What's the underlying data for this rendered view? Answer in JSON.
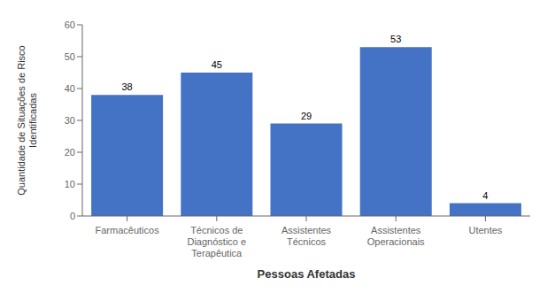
{
  "chart_data": {
    "type": "bar",
    "categories": [
      "Farmacêuticos",
      "Técnicos de\nDiagnóstico e\nTerapêutica",
      "Assistentes\nTécnicos",
      "Assistentes\nOperacionais",
      "Utentes"
    ],
    "values": [
      38,
      45,
      29,
      53,
      4
    ],
    "color": "#4472C4",
    "xlabel": "Pessoas Afetadas",
    "ylabel": "Quantidade de Situações de Risco\nIdentificadas",
    "ylim": [
      0,
      60
    ],
    "yticks": [
      0,
      10,
      20,
      30,
      40,
      50,
      60
    ],
    "grid": false,
    "data_labels": true
  }
}
